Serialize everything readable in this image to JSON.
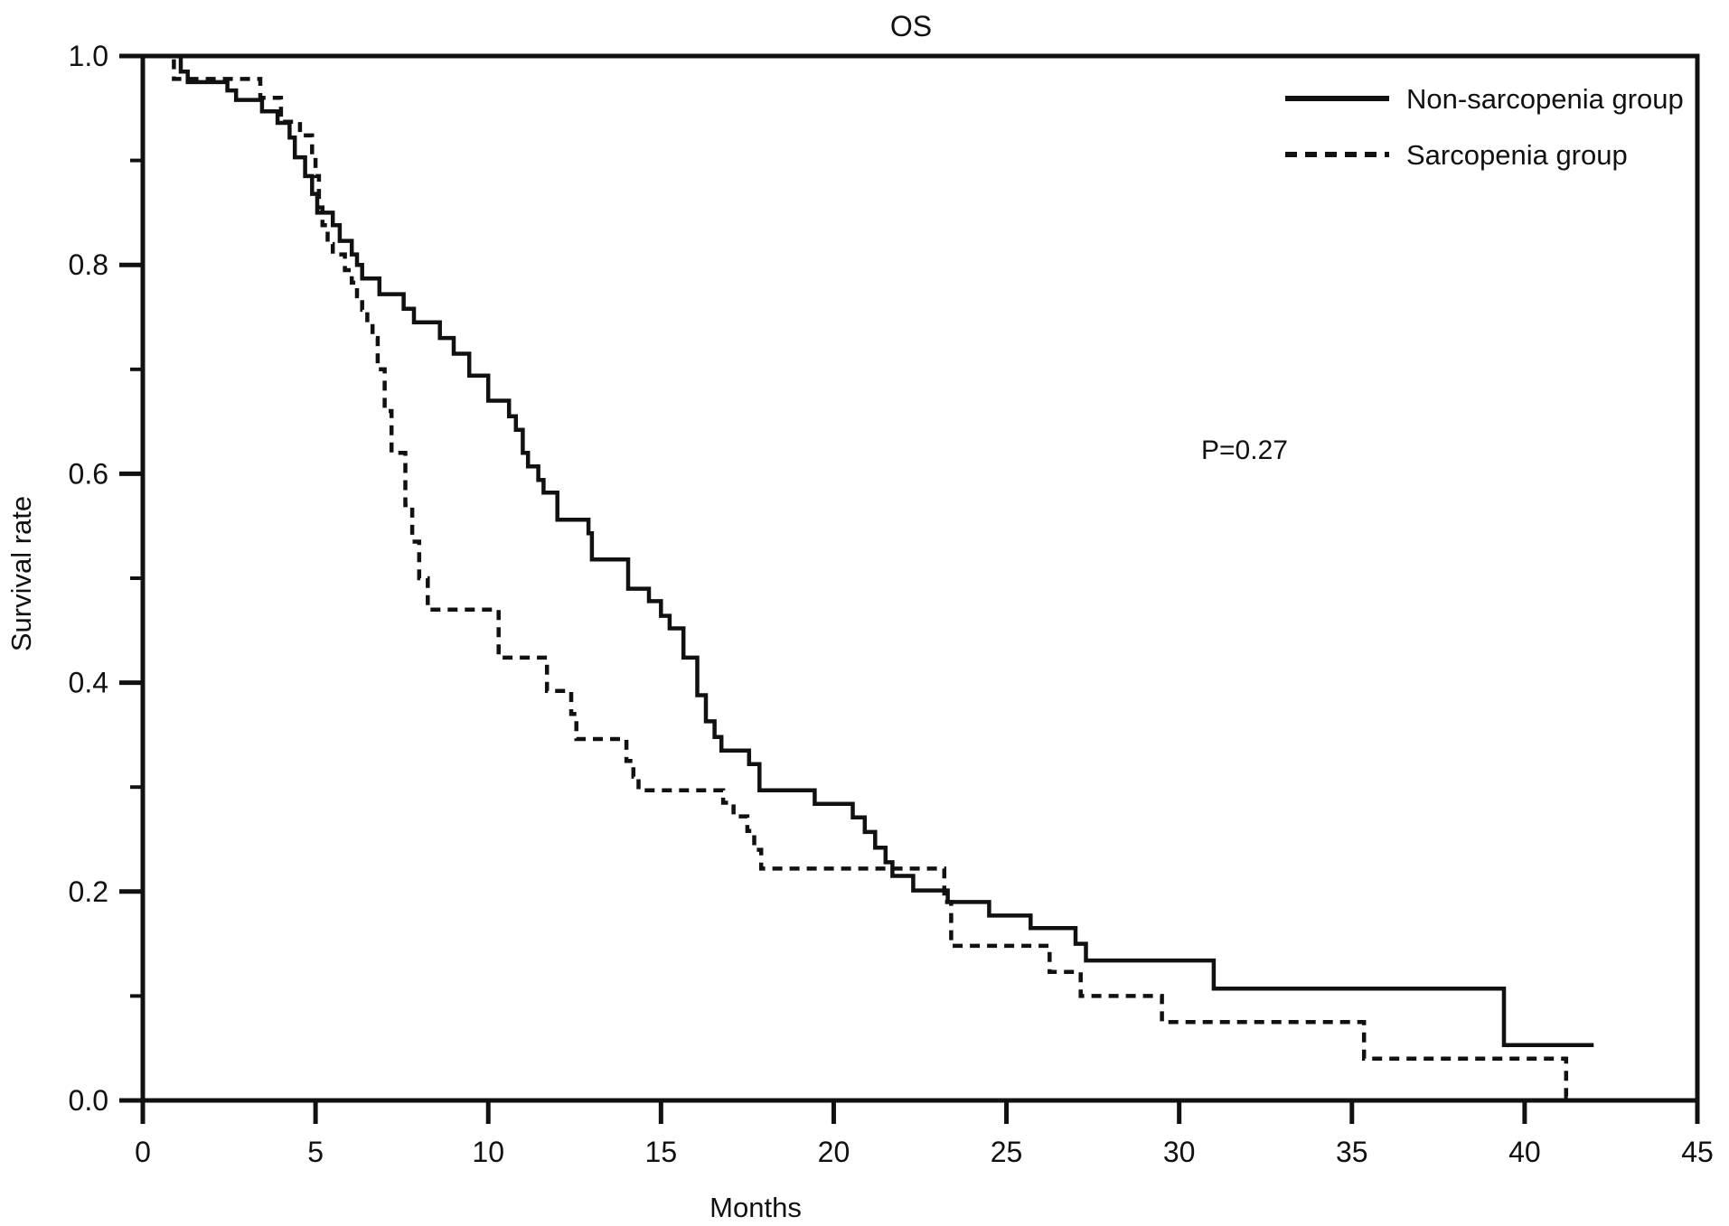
{
  "chart_data": {
    "type": "line",
    "subtype": "kaplan-meier-step",
    "title": "OS",
    "xlabel": "Months",
    "ylabel": "Survival rate",
    "annotation": "P=0.27",
    "xlim": [
      0,
      45
    ],
    "ylim": [
      0.0,
      1.0
    ],
    "x_ticks": [
      0,
      5,
      10,
      15,
      20,
      25,
      30,
      35,
      40,
      45
    ],
    "y_ticks": [
      {
        "value": 0.0,
        "label": "0.0"
      },
      {
        "value": 0.2,
        "label": "0.2"
      },
      {
        "value": 0.4,
        "label": "0.4"
      },
      {
        "value": 0.6,
        "label": "0.6"
      },
      {
        "value": 0.8,
        "label": "0.8"
      },
      {
        "value": 1.0,
        "label": "1.0"
      }
    ],
    "y_minor_ticks": [
      0.1,
      0.3,
      0.5,
      0.7,
      0.9
    ],
    "grid": false,
    "frame": "full-box",
    "line_color": "#111111",
    "legend_position": "top-right-inside",
    "legend": [
      {
        "name": "Non-sarcopenia group",
        "style": "solid"
      },
      {
        "name": "Sarcopenia group",
        "style": "dashed"
      }
    ],
    "series": [
      {
        "name": "Non-sarcopenia group",
        "style": "solid",
        "end_time": 42.0,
        "steps": [
          [
            0,
            1.0
          ],
          [
            1.1,
            0.985
          ],
          [
            1.3,
            0.975
          ],
          [
            2.45,
            0.967
          ],
          [
            2.7,
            0.958
          ],
          [
            3.45,
            0.947
          ],
          [
            3.9,
            0.936
          ],
          [
            4.25,
            0.922
          ],
          [
            4.4,
            0.903
          ],
          [
            4.7,
            0.885
          ],
          [
            4.9,
            0.868
          ],
          [
            5.05,
            0.85
          ],
          [
            5.5,
            0.838
          ],
          [
            5.7,
            0.823
          ],
          [
            6.05,
            0.81
          ],
          [
            6.2,
            0.8
          ],
          [
            6.35,
            0.787
          ],
          [
            6.85,
            0.772
          ],
          [
            7.55,
            0.758
          ],
          [
            7.85,
            0.745
          ],
          [
            8.6,
            0.73
          ],
          [
            9.0,
            0.715
          ],
          [
            9.45,
            0.694
          ],
          [
            10.0,
            0.67
          ],
          [
            10.6,
            0.655
          ],
          [
            10.8,
            0.642
          ],
          [
            11.0,
            0.62
          ],
          [
            11.15,
            0.607
          ],
          [
            11.45,
            0.594
          ],
          [
            11.6,
            0.582
          ],
          [
            12.0,
            0.556
          ],
          [
            12.9,
            0.543
          ],
          [
            13.0,
            0.518
          ],
          [
            14.05,
            0.49
          ],
          [
            14.65,
            0.478
          ],
          [
            15.0,
            0.464
          ],
          [
            15.25,
            0.452
          ],
          [
            15.65,
            0.424
          ],
          [
            16.05,
            0.388
          ],
          [
            16.3,
            0.363
          ],
          [
            16.55,
            0.348
          ],
          [
            16.75,
            0.335
          ],
          [
            17.55,
            0.322
          ],
          [
            17.85,
            0.297
          ],
          [
            19.45,
            0.284
          ],
          [
            20.55,
            0.271
          ],
          [
            20.9,
            0.257
          ],
          [
            21.2,
            0.242
          ],
          [
            21.5,
            0.228
          ],
          [
            21.7,
            0.215
          ],
          [
            22.3,
            0.201
          ],
          [
            23.3,
            0.19
          ],
          [
            24.5,
            0.177
          ],
          [
            25.7,
            0.165
          ],
          [
            27.0,
            0.15
          ],
          [
            27.3,
            0.134
          ],
          [
            31.0,
            0.107
          ],
          [
            39.4,
            0.053
          ]
        ]
      },
      {
        "name": "Sarcopenia group",
        "style": "dashed",
        "end_time": 41.3,
        "steps": [
          [
            0,
            1.0
          ],
          [
            0.9,
            0.978
          ],
          [
            3.4,
            0.96
          ],
          [
            4.0,
            0.937
          ],
          [
            4.55,
            0.924
          ],
          [
            4.9,
            0.905
          ],
          [
            5.0,
            0.885
          ],
          [
            5.1,
            0.855
          ],
          [
            5.2,
            0.838
          ],
          [
            5.35,
            0.82
          ],
          [
            5.5,
            0.81
          ],
          [
            5.85,
            0.795
          ],
          [
            6.05,
            0.783
          ],
          [
            6.2,
            0.77
          ],
          [
            6.35,
            0.757
          ],
          [
            6.5,
            0.745
          ],
          [
            6.65,
            0.73
          ],
          [
            6.8,
            0.7
          ],
          [
            7.0,
            0.66
          ],
          [
            7.2,
            0.62
          ],
          [
            7.6,
            0.57
          ],
          [
            7.8,
            0.535
          ],
          [
            8.0,
            0.5
          ],
          [
            8.25,
            0.47
          ],
          [
            10.3,
            0.424
          ],
          [
            11.7,
            0.392
          ],
          [
            12.4,
            0.37
          ],
          [
            12.55,
            0.346
          ],
          [
            14.0,
            0.325
          ],
          [
            14.2,
            0.31
          ],
          [
            14.35,
            0.297
          ],
          [
            16.8,
            0.285
          ],
          [
            17.1,
            0.272
          ],
          [
            17.5,
            0.258
          ],
          [
            17.7,
            0.24
          ],
          [
            17.9,
            0.222
          ],
          [
            23.2,
            0.19
          ],
          [
            23.4,
            0.148
          ],
          [
            26.25,
            0.123
          ],
          [
            27.15,
            0.1
          ],
          [
            29.5,
            0.075
          ],
          [
            35.35,
            0.04
          ],
          [
            41.2,
            0.004
          ]
        ]
      }
    ]
  }
}
